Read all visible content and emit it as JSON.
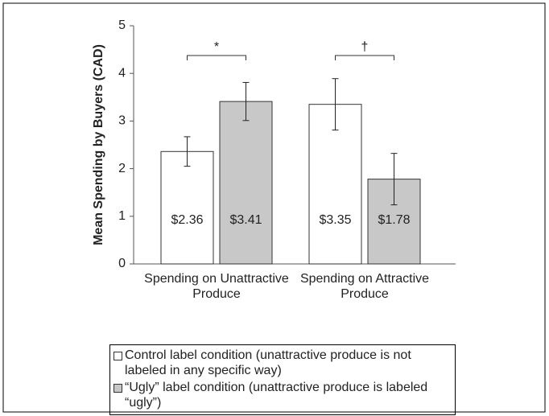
{
  "chart_data": {
    "type": "bar",
    "ylabel": "Mean Spending by Buyers (CAD)",
    "categories": [
      "Spending on Unattractive Produce",
      "Spending on Attractive Produce"
    ],
    "series": [
      {
        "name": "Control label condition (unattractive produce is not labeled in any specific way)",
        "color": "#ffffff",
        "values": [
          2.36,
          3.35
        ],
        "errors": [
          0.31,
          0.54
        ],
        "value_labels": [
          "$2.36",
          "$3.35"
        ]
      },
      {
        "name": "“Ugly” label condition (unattractive produce is labeled “ugly”)",
        "color": "#c8c8c8",
        "values": [
          3.41,
          1.78
        ],
        "errors": [
          0.4,
          0.54
        ],
        "value_labels": [
          "$3.41",
          "$1.78"
        ]
      }
    ],
    "annotations": [
      "*",
      "†"
    ],
    "ylim": [
      0,
      5
    ],
    "yticks": [
      0,
      1,
      2,
      3,
      4,
      5
    ]
  }
}
